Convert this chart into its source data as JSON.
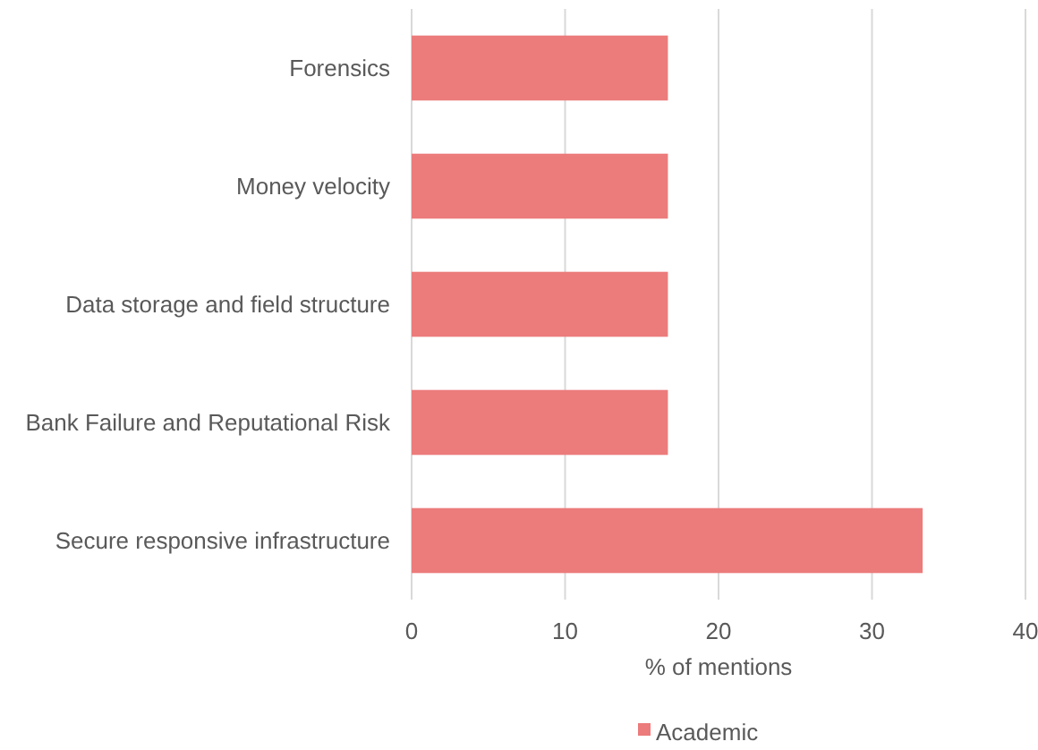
{
  "chart_data": {
    "type": "bar",
    "orientation": "horizontal",
    "categories": [
      "Forensics",
      "Money velocity",
      "Data storage and field structure",
      "Bank Failure and Reputational Risk",
      "Secure responsive infrastructure"
    ],
    "series": [
      {
        "name": "Academic",
        "color": "#ec7b7b",
        "values": [
          16.7,
          16.7,
          16.7,
          16.7,
          33.3
        ]
      }
    ],
    "xlabel": "% of mentions",
    "xlim": [
      0,
      40
    ],
    "xticks": [
      0,
      10,
      20,
      30,
      40
    ],
    "grid": "x",
    "legend": "bottom"
  }
}
